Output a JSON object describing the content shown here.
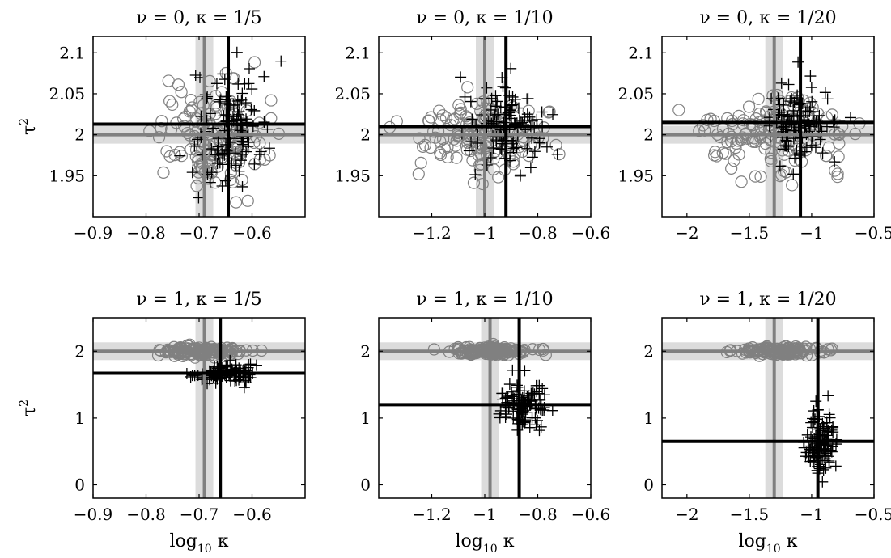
{
  "figure": {
    "y_axis_label": "τ",
    "y_axis_label_sup": "2",
    "x_axis_label": "log",
    "x_axis_label_sub": "10",
    "x_axis_label_tail": " κ"
  },
  "chart_data": [
    {
      "type": "scatter",
      "title": "ν = 0, κ = 1/5",
      "xlim": [
        -0.9,
        -0.5
      ],
      "ylim": [
        1.9,
        2.12
      ],
      "xticks": [
        -0.9,
        -0.8,
        -0.7,
        -0.6
      ],
      "xtick_labels": [
        "−0.9",
        "−0.8",
        "−0.7",
        "−0.6"
      ],
      "yticks": [
        1.95,
        2.0,
        2.05,
        2.1
      ],
      "ytick_labels": [
        "1.95",
        "2",
        "2.05",
        "2.1"
      ],
      "ylabel": "τ²",
      "xlabel": "",
      "grey_vline": -0.69,
      "grey_hline": 2.0,
      "black_vline": -0.645,
      "black_hline": 2.013,
      "circle_center": [
        -0.68,
        2.0
      ],
      "circle_spread": [
        0.05,
        0.033
      ],
      "plus_center": [
        -0.64,
        2.005
      ],
      "plus_spread": [
        0.035,
        0.035
      ],
      "series": [
        {
          "marker": "circle",
          "color": "#808080"
        },
        {
          "marker": "plus",
          "color": "#000000"
        }
      ],
      "grid": false
    },
    {
      "type": "scatter",
      "title": "ν = 0, κ = 1/10",
      "xlim": [
        -1.4,
        -0.6
      ],
      "ylim": [
        1.9,
        2.12
      ],
      "xticks": [
        -1.2,
        -1.0,
        -0.8,
        -0.6
      ],
      "xtick_labels": [
        "−1.2",
        "−1",
        "−0.8",
        "−0.6"
      ],
      "yticks": [
        1.95,
        2.0,
        2.05,
        2.1
      ],
      "ytick_labels": [
        "1.95",
        "2",
        "2.05",
        "2.1"
      ],
      "ylabel": "",
      "xlabel": "",
      "grey_vline": -1.0,
      "grey_hline": 2.0,
      "black_vline": -0.92,
      "black_hline": 2.01,
      "circle_center": [
        -1.0,
        2.0
      ],
      "circle_spread": [
        0.12,
        0.022
      ],
      "plus_center": [
        -0.92,
        2.01
      ],
      "plus_spread": [
        0.07,
        0.025
      ],
      "series": [
        {
          "marker": "circle",
          "color": "#808080"
        },
        {
          "marker": "plus",
          "color": "#000000"
        }
      ],
      "grid": false
    },
    {
      "type": "scatter",
      "title": "ν = 0, κ = 1/20",
      "xlim": [
        -2.2,
        -0.5
      ],
      "ylim": [
        1.9,
        2.12
      ],
      "xticks": [
        -2.0,
        -1.5,
        -1.0,
        -0.5
      ],
      "xtick_labels": [
        "−2",
        "−1.5",
        "−1",
        "−0.5"
      ],
      "yticks": [
        1.95,
        2.0,
        2.05,
        2.1
      ],
      "ytick_labels": [
        "1.95",
        "2",
        "2.05",
        "2.1"
      ],
      "ylabel": "",
      "xlabel": "",
      "grey_vline": -1.3,
      "grey_hline": 2.0,
      "black_vline": -1.09,
      "black_hline": 2.015,
      "circle_center": [
        -1.3,
        2.0
      ],
      "circle_spread": [
        0.28,
        0.024
      ],
      "plus_center": [
        -1.1,
        2.012
      ],
      "plus_spread": [
        0.15,
        0.028
      ],
      "series": [
        {
          "marker": "circle",
          "color": "#808080"
        },
        {
          "marker": "plus",
          "color": "#000000"
        }
      ],
      "grid": false
    },
    {
      "type": "scatter",
      "title": "ν = 1, κ = 1/5",
      "xlim": [
        -0.9,
        -0.5
      ],
      "ylim": [
        -0.2,
        2.5
      ],
      "xticks": [
        -0.9,
        -0.8,
        -0.7,
        -0.6
      ],
      "xtick_labels": [
        "−0.9",
        "−0.8",
        "−0.7",
        "−0.6"
      ],
      "yticks": [
        0,
        1,
        2
      ],
      "ytick_labels": [
        "0",
        "1",
        "2"
      ],
      "ylabel": "τ²",
      "xlabel": "log₁₀ κ",
      "grey_vline": -0.69,
      "grey_hline": 2.0,
      "black_vline": -0.66,
      "black_hline": 1.67,
      "circle_center": [
        -0.69,
        2.0
      ],
      "circle_spread": [
        0.04,
        0.04
      ],
      "plus_center": [
        -0.65,
        1.67
      ],
      "plus_spread": [
        0.03,
        0.07
      ],
      "series": [
        {
          "marker": "circle",
          "color": "#808080"
        },
        {
          "marker": "plus",
          "color": "#000000"
        }
      ],
      "grid": false
    },
    {
      "type": "scatter",
      "title": "ν = 1, κ = 1/10",
      "xlim": [
        -1.4,
        -0.6
      ],
      "ylim": [
        -0.2,
        2.5
      ],
      "xticks": [
        -1.2,
        -1.0,
        -0.8,
        -0.6
      ],
      "xtick_labels": [
        "−1.2",
        "−1",
        "−0.8",
        "−0.6"
      ],
      "yticks": [
        0,
        1,
        2
      ],
      "ytick_labels": [
        "0",
        "1",
        "2"
      ],
      "ylabel": "",
      "xlabel": "log₁₀ κ",
      "grey_vline": -0.98,
      "grey_hline": 2.0,
      "black_vline": -0.87,
      "black_hline": 1.2,
      "circle_center": [
        -0.97,
        2.0
      ],
      "circle_spread": [
        0.07,
        0.03
      ],
      "plus_center": [
        -0.86,
        1.22
      ],
      "plus_spread": [
        0.045,
        0.17
      ],
      "series": [
        {
          "marker": "circle",
          "color": "#808080"
        },
        {
          "marker": "plus",
          "color": "#000000"
        }
      ],
      "grid": false
    },
    {
      "type": "scatter",
      "title": "ν = 1, κ = 1/20",
      "xlim": [
        -2.2,
        -0.5
      ],
      "ylim": [
        -0.2,
        2.5
      ],
      "xticks": [
        -2.0,
        -1.5,
        -1.0,
        -0.5
      ],
      "xtick_labels": [
        "−2",
        "−1.5",
        "−1",
        "−0.5"
      ],
      "yticks": [
        0,
        1,
        2
      ],
      "ytick_labels": [
        "0",
        "1",
        "2"
      ],
      "ylabel": "",
      "xlabel": "log₁₀ κ",
      "grey_vline": -1.3,
      "grey_hline": 2.0,
      "black_vline": -0.95,
      "black_hline": 0.65,
      "circle_center": [
        -1.28,
        2.0
      ],
      "circle_spread": [
        0.16,
        0.03
      ],
      "plus_center": [
        -0.94,
        0.6
      ],
      "plus_spread": [
        0.06,
        0.22
      ],
      "series": [
        {
          "marker": "circle",
          "color": "#808080"
        },
        {
          "marker": "plus",
          "color": "#000000"
        }
      ],
      "grid": false
    }
  ]
}
